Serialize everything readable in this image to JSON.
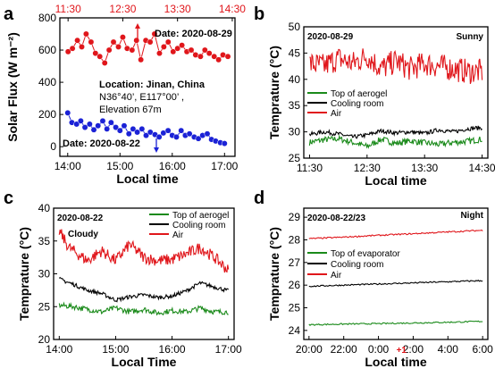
{
  "colors": {
    "red": "#e0161b",
    "blue": "#1b22d6",
    "green": "#1a8a1a",
    "black": "#000000"
  },
  "chart_data": [
    {
      "panel": "a",
      "type": "scatter",
      "ylabel": "Solar Flux (W m⁻²)",
      "xlabel": "Local time",
      "ylim": [
        -60,
        800
      ],
      "yticks": [
        "0",
        "200",
        "400",
        "600",
        "800"
      ],
      "bottom_ticks": [
        "14:00",
        "15:00",
        "16:00",
        "17:00"
      ],
      "top_ticks": [
        "11:30",
        "12:30",
        "13:30",
        "14:30"
      ],
      "top_date": "Date: 2020-08-29",
      "bottom_date": "Date: 2020-08-22",
      "location_lines": [
        "Location: Jinan, China",
        "N36°40’, E117°00’ ,",
        "Elevation 67m"
      ],
      "series": [
        {
          "color": "red",
          "axis": "top",
          "x": [
            11.5,
            11.58,
            11.67,
            11.75,
            11.83,
            11.92,
            12.0,
            12.08,
            12.17,
            12.25,
            12.33,
            12.42,
            12.5,
            12.58,
            12.67,
            12.75,
            12.83,
            12.92,
            13.0,
            13.08,
            13.17,
            13.25,
            13.33,
            13.42,
            13.5,
            13.58,
            13.67,
            13.75,
            13.83,
            13.92,
            14.0,
            14.08,
            14.17,
            14.25,
            14.33,
            14.42
          ],
          "y": [
            590,
            610,
            660,
            620,
            700,
            650,
            580,
            560,
            520,
            600,
            650,
            620,
            680,
            610,
            600,
            660,
            540,
            660,
            650,
            700,
            580,
            620,
            650,
            590,
            610,
            630,
            590,
            600,
            570,
            560,
            600,
            580,
            560,
            540,
            570,
            560
          ]
        },
        {
          "color": "blue",
          "axis": "bottom",
          "x": [
            14.0,
            14.08,
            14.17,
            14.25,
            14.33,
            14.42,
            14.5,
            14.58,
            14.67,
            14.75,
            14.83,
            14.92,
            15.0,
            15.08,
            15.17,
            15.25,
            15.33,
            15.42,
            15.5,
            15.58,
            15.67,
            15.75,
            15.83,
            15.92,
            16.0,
            16.08,
            16.17,
            16.25,
            16.33,
            16.42,
            16.5,
            16.58,
            16.67,
            16.75,
            16.83,
            16.92,
            17.0
          ],
          "y": [
            210,
            150,
            140,
            160,
            120,
            140,
            105,
            130,
            160,
            110,
            150,
            120,
            100,
            130,
            80,
            110,
            90,
            110,
            70,
            90,
            75,
            60,
            85,
            100,
            70,
            60,
            100,
            70,
            80,
            60,
            50,
            70,
            80,
            45,
            35,
            25,
            20
          ]
        }
      ]
    },
    {
      "panel": "b",
      "type": "line",
      "ylabel": "Temprature (°C)",
      "xlabel": "Local time",
      "date": "2020-08-29",
      "condition": "Sunny",
      "ylim": [
        25,
        50
      ],
      "yticks": [
        "25",
        "30",
        "35",
        "40",
        "45",
        "50"
      ],
      "xticks": [
        "11:30",
        "12:30",
        "13:30",
        "14:30"
      ],
      "xlim": [
        11.5,
        14.5
      ],
      "series": [
        {
          "name": "Top of aerogel",
          "color": "green",
          "x": [
            11.5,
            11.75,
            12.0,
            12.25,
            12.5,
            12.75,
            13.0,
            13.25,
            13.5,
            13.75,
            14.0,
            14.25,
            14.5
          ],
          "y": [
            28.0,
            28.5,
            28.7,
            28.0,
            27.2,
            28.6,
            27.8,
            28.3,
            27.9,
            27.6,
            28.0,
            28.2,
            28.6
          ]
        },
        {
          "name": "Cooling room",
          "color": "black",
          "x": [
            11.5,
            11.75,
            12.0,
            12.25,
            12.5,
            12.75,
            13.0,
            13.25,
            13.5,
            13.75,
            14.0,
            14.25,
            14.5
          ],
          "y": [
            29.5,
            30.0,
            29.6,
            29.0,
            29.4,
            30.2,
            29.8,
            30.0,
            29.7,
            30.4,
            30.0,
            30.6,
            30.8
          ]
        },
        {
          "name": "Air",
          "color": "red",
          "x": [
            11.5,
            11.75,
            12.0,
            12.25,
            12.5,
            12.75,
            13.0,
            13.25,
            13.5,
            13.75,
            14.0,
            14.25,
            14.5
          ],
          "y": [
            43.0,
            42.5,
            44.0,
            43.0,
            44.5,
            42.0,
            43.5,
            42.0,
            43.0,
            42.5,
            42.0,
            41.5,
            41.5
          ]
        }
      ]
    },
    {
      "panel": "c",
      "type": "line",
      "ylabel": "Temprature (°C)",
      "xlabel": "Local Time",
      "date": "2020-08-22",
      "condition": "Cloudy",
      "ylim": [
        20,
        40
      ],
      "yticks": [
        "20",
        "25",
        "30",
        "35",
        "40"
      ],
      "xticks": [
        "14:00",
        "15:00",
        "16:00",
        "17:00"
      ],
      "xlim": [
        14.0,
        17.0
      ],
      "series": [
        {
          "name": "Top of aerogel",
          "color": "green",
          "x": [
            14.0,
            14.25,
            14.5,
            14.75,
            15.0,
            15.25,
            15.5,
            15.75,
            16.0,
            16.25,
            16.5,
            16.75,
            17.0
          ],
          "y": [
            25.2,
            25.0,
            24.6,
            24.2,
            24.8,
            24.2,
            24.6,
            24.0,
            24.4,
            24.2,
            24.8,
            24.2,
            24.2
          ]
        },
        {
          "name": "Cooling room",
          "color": "black",
          "x": [
            14.0,
            14.25,
            14.5,
            14.75,
            15.0,
            15.25,
            15.5,
            15.75,
            16.0,
            16.25,
            16.5,
            16.75,
            17.0
          ],
          "y": [
            29.2,
            28.4,
            27.5,
            27.0,
            26.0,
            26.5,
            26.8,
            26.4,
            26.6,
            27.4,
            28.6,
            28.0,
            27.4
          ]
        },
        {
          "name": "Air",
          "color": "red",
          "x": [
            14.0,
            14.17,
            14.33,
            14.5,
            14.75,
            15.0,
            15.25,
            15.5,
            15.75,
            16.0,
            16.25,
            16.5,
            16.75,
            17.0
          ],
          "y": [
            36.5,
            34.0,
            33.0,
            32.0,
            33.5,
            32.0,
            34.5,
            32.5,
            32.0,
            32.2,
            33.0,
            34.0,
            32.5,
            30.5
          ]
        }
      ]
    },
    {
      "panel": "d",
      "type": "line",
      "ylabel": "Temprature (°C)",
      "xlabel": "Local time",
      "date": "2020-08-22/23",
      "condition": "Night",
      "ylim": [
        23.6,
        29.4
      ],
      "yticks": [
        "24",
        "25",
        "26",
        "27",
        "28",
        "29"
      ],
      "xticks": [
        "20:00",
        "22:00",
        "0:00",
        "2:00",
        "4:00",
        "6:00"
      ],
      "day_marker": "+1",
      "xlim": [
        20,
        30
      ],
      "series": [
        {
          "name": "Top of evaporator",
          "color": "green",
          "x": [
            20,
            22,
            24,
            26,
            28,
            30
          ],
          "y": [
            24.25,
            24.28,
            24.3,
            24.33,
            24.36,
            24.4
          ]
        },
        {
          "name": "Cooling room",
          "color": "black",
          "x": [
            20,
            22,
            24,
            26,
            28,
            30
          ],
          "y": [
            25.95,
            26.0,
            26.05,
            26.1,
            26.15,
            26.2
          ]
        },
        {
          "name": "Air",
          "color": "red",
          "x": [
            20,
            22,
            24,
            26,
            28,
            30
          ],
          "y": [
            28.05,
            28.12,
            28.2,
            28.27,
            28.35,
            28.42
          ]
        }
      ]
    }
  ],
  "panel_letters": [
    "a",
    "b",
    "c",
    "d"
  ]
}
